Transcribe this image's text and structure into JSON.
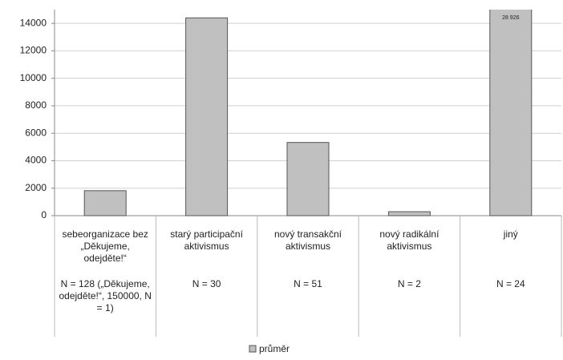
{
  "chart_data": {
    "type": "bar",
    "categories": [
      "sebeorganizace bez „Děkujeme, odejděte!“",
      "starý participační aktivismus",
      "nový transakční aktivismus",
      "nový radikální aktivismus",
      "jiný"
    ],
    "notes": [
      "N = 128 („Děkujeme, odejděte!“, 150000, N = 1)",
      "N = 30",
      "N = 51",
      "N = 2",
      "N = 24"
    ],
    "series": [
      {
        "name": "průměr",
        "color": "#c0c0c0",
        "values": [
          1820,
          14400,
          5330,
          290,
          28926
        ],
        "value_labels": [
          null,
          null,
          null,
          null,
          "28 926"
        ]
      }
    ],
    "ylim": [
      0,
      15000
    ],
    "yticks": [
      0,
      2000,
      4000,
      6000,
      8000,
      10000,
      12000,
      14000
    ],
    "grid": true,
    "legend": "bottom"
  }
}
